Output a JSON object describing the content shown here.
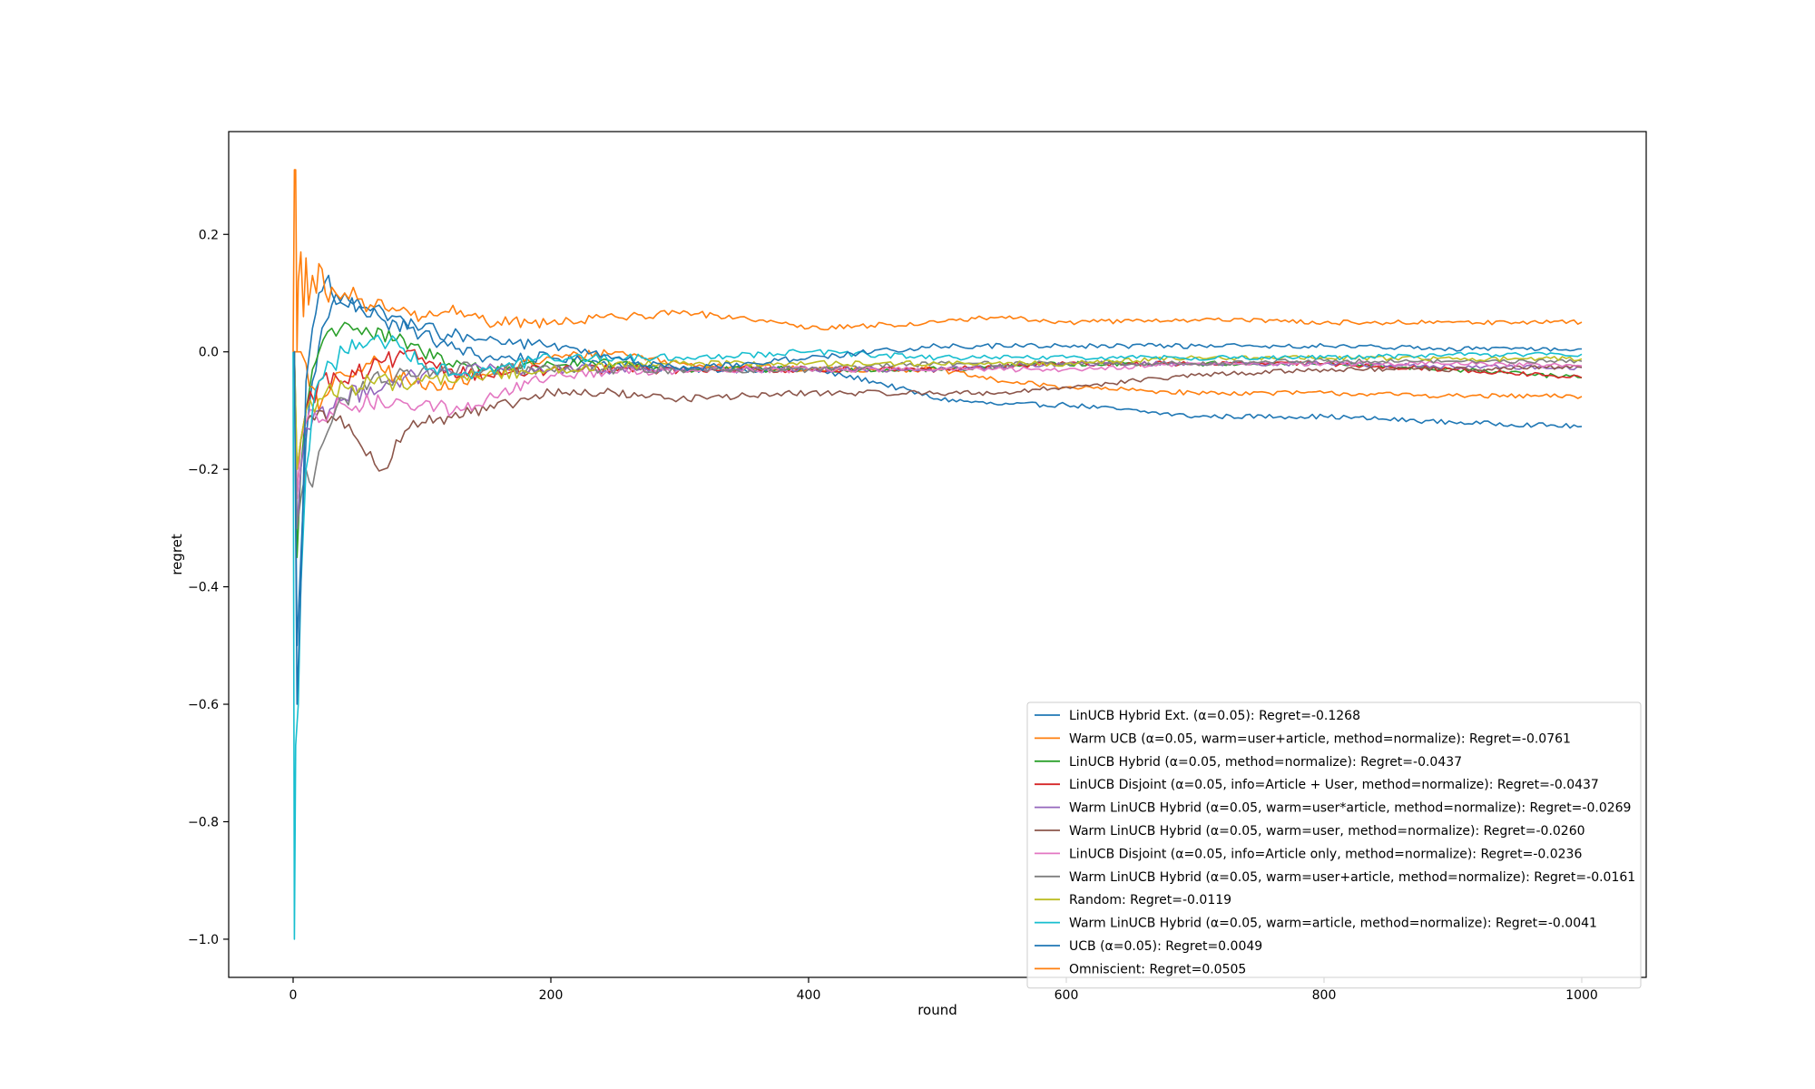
{
  "chart_data": {
    "type": "line",
    "title": "",
    "xlabel": "round",
    "ylabel": "regret",
    "xlim": [
      -50,
      1050
    ],
    "ylim": [
      -1.065,
      0.375
    ],
    "xticks": [
      0,
      200,
      400,
      600,
      800,
      1000
    ],
    "xtick_labels": [
      "0",
      "200",
      "400",
      "600",
      "800",
      "1000"
    ],
    "yticks": [
      -1.0,
      -0.8,
      -0.6,
      -0.4,
      -0.2,
      0.0,
      0.2
    ],
    "ytick_labels": [
      "−1.0",
      "−0.8",
      "−0.6",
      "−0.4",
      "−0.2",
      "0.0",
      "0.2"
    ],
    "grid": false,
    "legend_position": "lower-right",
    "series": [
      {
        "name": "LinUCB Hybrid Ext. (α=0.05): Regret=-0.1268",
        "color": "#1f77b4",
        "x": [
          0,
          1,
          3,
          6,
          10,
          15,
          20,
          25,
          30,
          40,
          50,
          60,
          70,
          80,
          90,
          100,
          120,
          150,
          200,
          250,
          300,
          350,
          400,
          450,
          500,
          550,
          600,
          700,
          800,
          900,
          1000
        ],
        "y": [
          0.0,
          0.0,
          -0.5,
          -0.35,
          -0.15,
          -0.05,
          0.01,
          0.05,
          0.08,
          0.1,
          0.09,
          0.07,
          0.07,
          0.06,
          0.04,
          0.03,
          0.01,
          -0.01,
          -0.01,
          -0.02,
          -0.03,
          -0.03,
          -0.03,
          -0.05,
          -0.08,
          -0.09,
          -0.09,
          -0.11,
          -0.11,
          -0.12,
          -0.127
        ]
      },
      {
        "name": "Warm UCB (α=0.05, warm=user+article, method=normalize): Regret=-0.0761",
        "color": "#ff7f0e",
        "x": [
          0,
          1,
          3,
          6,
          10,
          15,
          20,
          30,
          40,
          50,
          60,
          80,
          100,
          150,
          200,
          250,
          300,
          400,
          500,
          550,
          600,
          700,
          800,
          900,
          1000
        ],
        "y": [
          0.0,
          0.0,
          0.0,
          0.0,
          -0.02,
          -0.06,
          -0.1,
          -0.06,
          -0.04,
          -0.03,
          -0.02,
          -0.04,
          -0.06,
          -0.04,
          -0.01,
          0.0,
          -0.02,
          -0.03,
          -0.03,
          -0.05,
          -0.06,
          -0.07,
          -0.07,
          -0.075,
          -0.076
        ]
      },
      {
        "name": "LinUCB Hybrid (α=0.05, method=normalize): Regret=-0.0437",
        "color": "#2ca02c",
        "x": [
          0,
          1,
          3,
          6,
          10,
          15,
          20,
          30,
          40,
          50,
          60,
          80,
          100,
          130,
          150,
          200,
          250,
          300,
          400,
          500,
          600,
          700,
          800,
          900,
          1000
        ],
        "y": [
          0.0,
          0.0,
          -0.35,
          -0.2,
          -0.1,
          -0.03,
          0.0,
          0.04,
          0.05,
          0.04,
          0.03,
          0.02,
          0.0,
          -0.02,
          -0.03,
          -0.02,
          -0.02,
          -0.03,
          -0.03,
          -0.03,
          -0.02,
          -0.02,
          -0.02,
          -0.03,
          -0.044
        ]
      },
      {
        "name": "LinUCB Disjoint (α=0.05, info=Article + User, method=normalize): Regret=-0.0437",
        "color": "#d62728",
        "x": [
          0,
          1,
          3,
          6,
          10,
          20,
          40,
          60,
          80,
          100,
          120,
          150,
          200,
          300,
          400,
          500,
          600,
          700,
          800,
          900,
          1000
        ],
        "y": [
          0.0,
          0.0,
          -0.25,
          -0.15,
          -0.1,
          -0.05,
          -0.05,
          -0.03,
          -0.01,
          -0.01,
          -0.03,
          -0.04,
          -0.03,
          -0.03,
          -0.03,
          -0.03,
          -0.02,
          -0.02,
          -0.02,
          -0.03,
          -0.044
        ]
      },
      {
        "name": "Warm LinUCB Hybrid (α=0.05, warm=user*article, method=normalize): Regret=-0.0269",
        "color": "#9467bd",
        "x": [
          0,
          1,
          3,
          6,
          10,
          20,
          40,
          60,
          80,
          100,
          150,
          200,
          300,
          400,
          500,
          600,
          700,
          800,
          900,
          1000
        ],
        "y": [
          0.0,
          0.0,
          -0.3,
          -0.2,
          -0.13,
          -0.1,
          -0.08,
          -0.06,
          -0.05,
          -0.04,
          -0.03,
          -0.03,
          -0.03,
          -0.03,
          -0.03,
          -0.02,
          -0.02,
          -0.02,
          -0.025,
          -0.027
        ]
      },
      {
        "name": "Warm LinUCB Hybrid (α=0.05, warm=user, method=normalize): Regret=-0.0260",
        "color": "#8c564b",
        "x": [
          0,
          1,
          3,
          6,
          10,
          20,
          30,
          40,
          50,
          60,
          70,
          80,
          90,
          100,
          120,
          150,
          200,
          250,
          300,
          400,
          500,
          550,
          600,
          700,
          800,
          900,
          1000
        ],
        "y": [
          0.0,
          0.0,
          -0.2,
          -0.15,
          -0.12,
          -0.1,
          -0.11,
          -0.13,
          -0.15,
          -0.17,
          -0.2,
          -0.15,
          -0.13,
          -0.12,
          -0.11,
          -0.1,
          -0.07,
          -0.07,
          -0.08,
          -0.07,
          -0.07,
          -0.07,
          -0.06,
          -0.04,
          -0.03,
          -0.03,
          -0.026
        ]
      },
      {
        "name": "LinUCB Disjoint (α=0.05, info=Article only, method=normalize): Regret=-0.0236",
        "color": "#e377c2",
        "x": [
          0,
          1,
          3,
          6,
          10,
          20,
          40,
          60,
          80,
          100,
          130,
          150,
          200,
          300,
          400,
          500,
          600,
          700,
          800,
          900,
          1000
        ],
        "y": [
          0.0,
          0.0,
          -0.25,
          -0.15,
          -0.12,
          -0.12,
          -0.09,
          -0.09,
          -0.08,
          -0.09,
          -0.1,
          -0.08,
          -0.04,
          -0.03,
          -0.03,
          -0.03,
          -0.03,
          -0.02,
          -0.02,
          -0.02,
          -0.024
        ]
      },
      {
        "name": "Warm LinUCB Hybrid (α=0.05, warm=user+article, method=normalize): Regret=-0.0161",
        "color": "#7f7f7f",
        "x": [
          0,
          1,
          3,
          6,
          10,
          15,
          20,
          30,
          40,
          60,
          80,
          100,
          150,
          200,
          300,
          400,
          500,
          600,
          700,
          800,
          900,
          1000
        ],
        "y": [
          0.0,
          0.0,
          -0.3,
          -0.25,
          -0.2,
          -0.23,
          -0.17,
          -0.12,
          -0.08,
          -0.05,
          -0.04,
          -0.03,
          -0.03,
          -0.03,
          -0.03,
          -0.03,
          -0.02,
          -0.02,
          -0.02,
          -0.015,
          -0.016,
          -0.016
        ]
      },
      {
        "name": "Random: Regret=-0.0119",
        "color": "#bcbd22",
        "x": [
          0,
          1,
          3,
          6,
          10,
          20,
          40,
          60,
          80,
          100,
          150,
          200,
          300,
          400,
          500,
          600,
          700,
          800,
          900,
          1000
        ],
        "y": [
          0.0,
          0.0,
          -0.2,
          -0.15,
          -0.1,
          -0.08,
          -0.06,
          -0.05,
          -0.05,
          -0.05,
          -0.04,
          -0.03,
          -0.02,
          -0.02,
          -0.02,
          -0.02,
          -0.01,
          -0.01,
          -0.012,
          -0.012
        ]
      },
      {
        "name": "Warm LinUCB Hybrid (α=0.05, warm=article, method=normalize): Regret=-0.0041",
        "color": "#17becf",
        "x": [
          0,
          1,
          2,
          4,
          6,
          8,
          10,
          15,
          20,
          30,
          40,
          60,
          80,
          100,
          130,
          150,
          200,
          250,
          300,
          400,
          500,
          600,
          700,
          800,
          900,
          1000
        ],
        "y": [
          0.0,
          -1.0,
          -0.67,
          -0.6,
          -0.4,
          -0.3,
          -0.2,
          -0.1,
          -0.05,
          -0.02,
          0.0,
          0.02,
          0.02,
          -0.02,
          -0.04,
          -0.03,
          -0.01,
          -0.01,
          -0.01,
          0.0,
          -0.01,
          -0.01,
          -0.01,
          -0.01,
          -0.005,
          -0.004
        ]
      },
      {
        "name": "UCB (α=0.05): Regret=0.0049",
        "color": "#1f77b4",
        "x": [
          0,
          1,
          3,
          6,
          10,
          15,
          20,
          25,
          30,
          40,
          60,
          80,
          100,
          120,
          150,
          200,
          250,
          300,
          350,
          400,
          500,
          600,
          700,
          800,
          900,
          1000
        ],
        "y": [
          0.0,
          0.0,
          -0.6,
          -0.4,
          -0.05,
          0.04,
          0.1,
          0.12,
          0.1,
          0.08,
          0.06,
          0.05,
          0.04,
          0.03,
          0.02,
          0.01,
          -0.01,
          -0.03,
          -0.02,
          -0.01,
          0.01,
          0.01,
          0.01,
          0.01,
          0.005,
          0.005
        ]
      },
      {
        "name": "Omniscient: Regret=0.0505",
        "color": "#ff7f0e",
        "x": [
          0,
          1,
          2,
          3,
          4,
          6,
          8,
          10,
          12,
          15,
          18,
          20,
          25,
          30,
          40,
          50,
          60,
          80,
          100,
          130,
          150,
          200,
          250,
          300,
          350,
          400,
          500,
          550,
          600,
          700,
          800,
          900,
          1000
        ],
        "y": [
          0.0,
          0.31,
          0.31,
          0.0,
          0.12,
          0.17,
          0.06,
          0.16,
          0.08,
          0.13,
          0.1,
          0.15,
          0.1,
          0.11,
          0.1,
          0.09,
          0.08,
          0.07,
          0.06,
          0.07,
          0.05,
          0.05,
          0.06,
          0.065,
          0.06,
          0.04,
          0.05,
          0.06,
          0.05,
          0.055,
          0.05,
          0.05,
          0.0505
        ]
      }
    ]
  }
}
